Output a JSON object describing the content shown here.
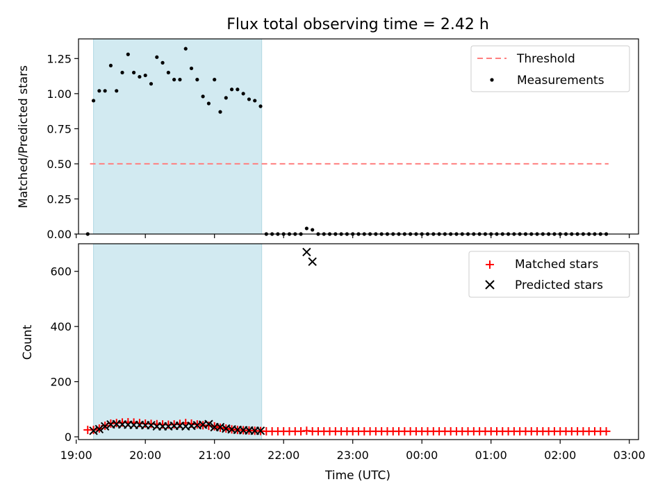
{
  "figure": {
    "title": "Flux total observing time = 2.42 h",
    "xlabel": "Time (UTC)"
  },
  "colors": {
    "shade": "#add8e6",
    "threshold": "#ff7f7f",
    "measurement": "#000000",
    "matched": "#ff0000",
    "predicted": "#000000"
  },
  "chart_data": [
    {
      "type": "scatter",
      "panel": "top",
      "title": "Flux total observing time = 2.42 h",
      "ylabel": "Matched/Predicted stars",
      "xlim": [
        "19:02",
        "03:08"
      ],
      "ylim": [
        0,
        1.39
      ],
      "yticks": [
        "0.00",
        "0.25",
        "0.50",
        "0.75",
        "1.00",
        "1.25"
      ],
      "grid": false,
      "legend_position": "upper right",
      "shaded_span": [
        "19:15",
        "21:41"
      ],
      "threshold": {
        "name": "Threshold",
        "value": 0.5,
        "x_range": [
          "19:12",
          "02:42"
        ]
      },
      "series": [
        {
          "name": "Measurements",
          "points": [
            [
              "19:10",
              0.0
            ],
            [
              "19:15",
              0.95
            ],
            [
              "19:20",
              1.02
            ],
            [
              "19:25",
              1.02
            ],
            [
              "19:30",
              1.2
            ],
            [
              "19:35",
              1.02
            ],
            [
              "19:40",
              1.15
            ],
            [
              "19:45",
              1.28
            ],
            [
              "19:50",
              1.15
            ],
            [
              "19:55",
              1.12
            ],
            [
              "20:00",
              1.13
            ],
            [
              "20:05",
              1.07
            ],
            [
              "20:10",
              1.26
            ],
            [
              "20:15",
              1.22
            ],
            [
              "20:20",
              1.15
            ],
            [
              "20:25",
              1.1
            ],
            [
              "20:30",
              1.1
            ],
            [
              "20:35",
              1.32
            ],
            [
              "20:40",
              1.18
            ],
            [
              "20:45",
              1.1
            ],
            [
              "20:50",
              0.98
            ],
            [
              "20:55",
              0.93
            ],
            [
              "21:00",
              1.1
            ],
            [
              "21:05",
              0.87
            ],
            [
              "21:10",
              0.97
            ],
            [
              "21:15",
              1.03
            ],
            [
              "21:20",
              1.03
            ],
            [
              "21:25",
              1.0
            ],
            [
              "21:30",
              0.96
            ],
            [
              "21:35",
              0.95
            ],
            [
              "21:40",
              0.91
            ],
            [
              "21:45",
              0.0
            ],
            [
              "21:50",
              0.0
            ],
            [
              "21:55",
              0.0
            ],
            [
              "22:00",
              0.0
            ],
            [
              "22:05",
              0.0
            ],
            [
              "22:10",
              0.0
            ],
            [
              "22:15",
              0.0
            ],
            [
              "22:20",
              0.04
            ],
            [
              "22:25",
              0.03
            ],
            [
              "22:30",
              0.0
            ],
            [
              "22:35",
              0.0
            ],
            [
              "22:40",
              0.0
            ],
            [
              "22:45",
              0.0
            ],
            [
              "22:50",
              0.0
            ],
            [
              "22:55",
              0.0
            ],
            [
              "23:00",
              0.0
            ],
            [
              "23:05",
              0.0
            ],
            [
              "23:10",
              0.0
            ],
            [
              "23:15",
              0.0
            ],
            [
              "23:20",
              0.0
            ],
            [
              "23:25",
              0.0
            ],
            [
              "23:30",
              0.0
            ],
            [
              "23:35",
              0.0
            ],
            [
              "23:40",
              0.0
            ],
            [
              "23:45",
              0.0
            ],
            [
              "23:50",
              0.0
            ],
            [
              "23:55",
              0.0
            ],
            [
              "00:00",
              0.0
            ],
            [
              "00:05",
              0.0
            ],
            [
              "00:10",
              0.0
            ],
            [
              "00:15",
              0.0
            ],
            [
              "00:20",
              0.0
            ],
            [
              "00:25",
              0.0
            ],
            [
              "00:30",
              0.0
            ],
            [
              "00:35",
              0.0
            ],
            [
              "00:40",
              0.0
            ],
            [
              "00:45",
              0.0
            ],
            [
              "00:50",
              0.0
            ],
            [
              "00:55",
              0.0
            ],
            [
              "01:00",
              0.0
            ],
            [
              "01:05",
              0.0
            ],
            [
              "01:10",
              0.0
            ],
            [
              "01:15",
              0.0
            ],
            [
              "01:20",
              0.0
            ],
            [
              "01:25",
              0.0
            ],
            [
              "01:30",
              0.0
            ],
            [
              "01:35",
              0.0
            ],
            [
              "01:40",
              0.0
            ],
            [
              "01:45",
              0.0
            ],
            [
              "01:50",
              0.0
            ],
            [
              "01:55",
              0.0
            ],
            [
              "02:00",
              0.0
            ],
            [
              "02:05",
              0.0
            ],
            [
              "02:10",
              0.0
            ],
            [
              "02:15",
              0.0
            ],
            [
              "02:20",
              0.0
            ],
            [
              "02:25",
              0.0
            ],
            [
              "02:30",
              0.0
            ],
            [
              "02:35",
              0.0
            ],
            [
              "02:40",
              0.0
            ]
          ]
        }
      ]
    },
    {
      "type": "scatter",
      "panel": "bottom",
      "xlabel": "Time (UTC)",
      "ylabel": "Count",
      "xlim": [
        "19:02",
        "03:08"
      ],
      "ylim": [
        -10,
        700
      ],
      "yticks": [
        "0",
        "200",
        "400",
        "600"
      ],
      "xticks": [
        "19:00",
        "20:00",
        "21:00",
        "22:00",
        "23:00",
        "00:00",
        "01:00",
        "02:00",
        "03:00"
      ],
      "grid": false,
      "legend_position": "upper right",
      "shaded_span": [
        "19:15",
        "21:41"
      ],
      "series": [
        {
          "name": "Matched stars",
          "marker": "plus",
          "points": [
            [
              "19:10",
              25
            ],
            [
              "19:15",
              25
            ],
            [
              "19:20",
              30
            ],
            [
              "19:25",
              40
            ],
            [
              "19:30",
              48
            ],
            [
              "19:35",
              50
            ],
            [
              "19:40",
              52
            ],
            [
              "19:45",
              53
            ],
            [
              "19:50",
              52
            ],
            [
              "19:55",
              50
            ],
            [
              "20:00",
              48
            ],
            [
              "20:05",
              47
            ],
            [
              "20:10",
              46
            ],
            [
              "20:15",
              45
            ],
            [
              "20:20",
              44
            ],
            [
              "20:25",
              45
            ],
            [
              "20:30",
              47
            ],
            [
              "20:35",
              50
            ],
            [
              "20:40",
              48
            ],
            [
              "20:45",
              45
            ],
            [
              "20:50",
              42
            ],
            [
              "20:55",
              40
            ],
            [
              "21:00",
              38
            ],
            [
              "21:05",
              33
            ],
            [
              "21:10",
              30
            ],
            [
              "21:15",
              27
            ],
            [
              "21:20",
              25
            ],
            [
              "21:25",
              24
            ],
            [
              "21:30",
              23
            ],
            [
              "21:35",
              22
            ],
            [
              "21:40",
              21
            ],
            [
              "21:45",
              20
            ],
            [
              "21:50",
              20
            ],
            [
              "21:55",
              20
            ],
            [
              "22:00",
              20
            ],
            [
              "22:05",
              20
            ],
            [
              "22:10",
              20
            ],
            [
              "22:15",
              20
            ],
            [
              "22:20",
              22
            ],
            [
              "22:25",
              20
            ],
            [
              "22:30",
              20
            ],
            [
              "22:35",
              20
            ],
            [
              "22:40",
              20
            ],
            [
              "22:45",
              20
            ],
            [
              "22:50",
              20
            ],
            [
              "22:55",
              20
            ],
            [
              "23:00",
              20
            ],
            [
              "23:05",
              20
            ],
            [
              "23:10",
              20
            ],
            [
              "23:15",
              20
            ],
            [
              "23:20",
              20
            ],
            [
              "23:25",
              20
            ],
            [
              "23:30",
              20
            ],
            [
              "23:35",
              20
            ],
            [
              "23:40",
              20
            ],
            [
              "23:45",
              20
            ],
            [
              "23:50",
              20
            ],
            [
              "23:55",
              20
            ],
            [
              "00:00",
              20
            ],
            [
              "00:05",
              20
            ],
            [
              "00:10",
              20
            ],
            [
              "00:15",
              20
            ],
            [
              "00:20",
              20
            ],
            [
              "00:25",
              20
            ],
            [
              "00:30",
              20
            ],
            [
              "00:35",
              20
            ],
            [
              "00:40",
              20
            ],
            [
              "00:45",
              20
            ],
            [
              "00:50",
              20
            ],
            [
              "00:55",
              20
            ],
            [
              "01:00",
              20
            ],
            [
              "01:05",
              20
            ],
            [
              "01:10",
              20
            ],
            [
              "01:15",
              20
            ],
            [
              "01:20",
              20
            ],
            [
              "01:25",
              20
            ],
            [
              "01:30",
              20
            ],
            [
              "01:35",
              20
            ],
            [
              "01:40",
              20
            ],
            [
              "01:45",
              20
            ],
            [
              "01:50",
              20
            ],
            [
              "01:55",
              20
            ],
            [
              "02:00",
              20
            ],
            [
              "02:05",
              20
            ],
            [
              "02:10",
              20
            ],
            [
              "02:15",
              20
            ],
            [
              "02:20",
              20
            ],
            [
              "02:25",
              20
            ],
            [
              "02:30",
              20
            ],
            [
              "02:35",
              20
            ],
            [
              "02:40",
              20
            ]
          ]
        },
        {
          "name": "Predicted stars",
          "marker": "x",
          "points": [
            [
              "19:15",
              22
            ],
            [
              "19:20",
              28
            ],
            [
              "19:25",
              38
            ],
            [
              "19:30",
              45
            ],
            [
              "19:35",
              46
            ],
            [
              "19:40",
              45
            ],
            [
              "19:45",
              44
            ],
            [
              "19:50",
              43
            ],
            [
              "19:55",
              43
            ],
            [
              "20:00",
              42
            ],
            [
              "20:05",
              42
            ],
            [
              "20:10",
              38
            ],
            [
              "20:15",
              38
            ],
            [
              "20:20",
              38
            ],
            [
              "20:25",
              40
            ],
            [
              "20:30",
              40
            ],
            [
              "20:35",
              38
            ],
            [
              "20:40",
              40
            ],
            [
              "20:45",
              42
            ],
            [
              "20:50",
              44
            ],
            [
              "20:55",
              46
            ],
            [
              "21:00",
              35
            ],
            [
              "21:05",
              35
            ],
            [
              "21:10",
              30
            ],
            [
              "21:15",
              27
            ],
            [
              "21:20",
              25
            ],
            [
              "21:25",
              24
            ],
            [
              "21:30",
              23
            ],
            [
              "21:35",
              22
            ],
            [
              "21:40",
              22
            ],
            [
              "22:20",
              670
            ],
            [
              "22:25",
              635
            ]
          ]
        }
      ]
    }
  ]
}
